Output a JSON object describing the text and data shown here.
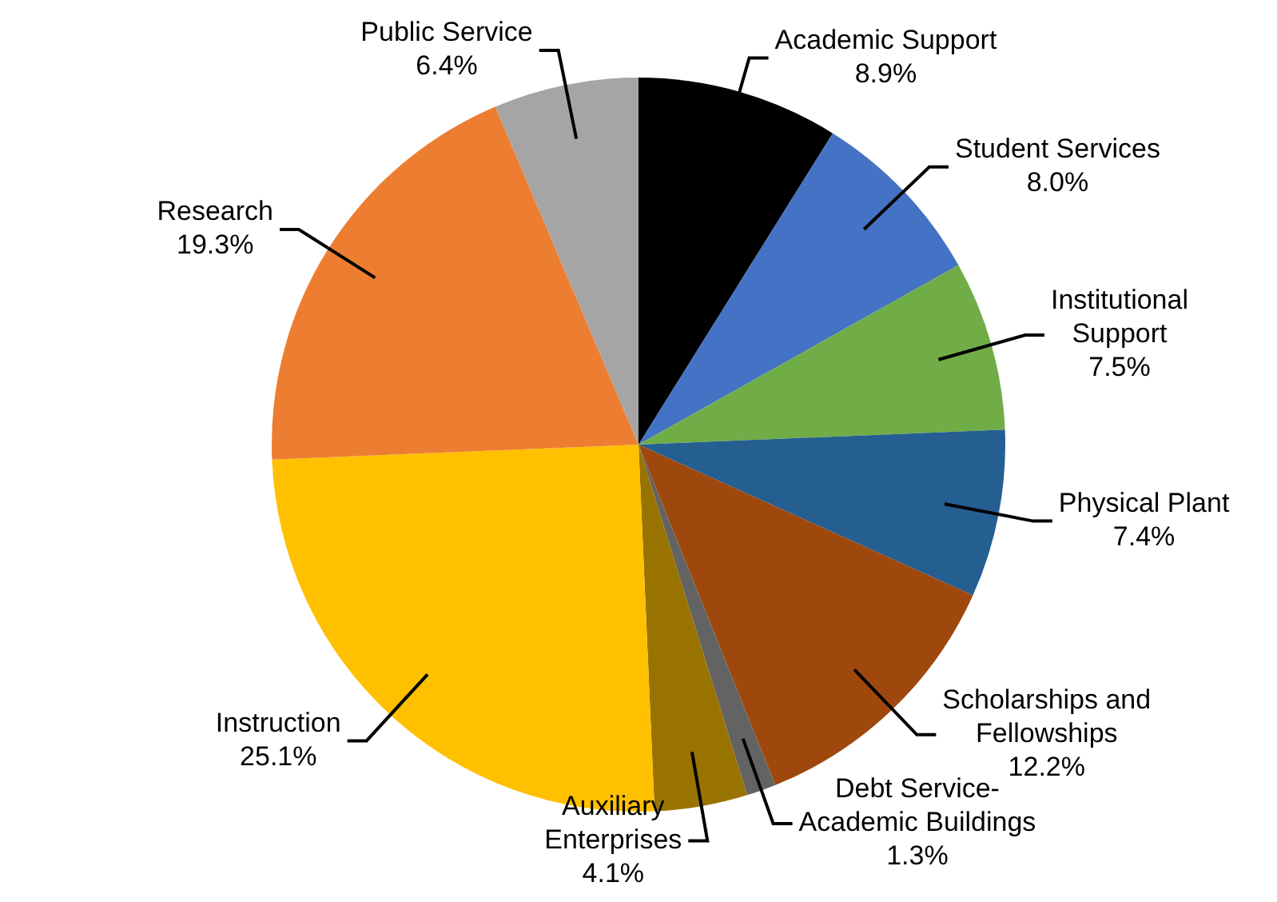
{
  "chart_data": {
    "type": "pie",
    "categories": [
      "Academic Support",
      "Student Services",
      "Institutional Support",
      "Physical Plant",
      "Scholarships and Fellowships",
      "Debt Service-Academic Buildings",
      "Auxiliary Enterprises",
      "Instruction",
      "Research",
      "Public Service"
    ],
    "values": [
      8.9,
      8.0,
      7.5,
      7.4,
      12.2,
      1.3,
      4.1,
      25.1,
      19.3,
      6.4
    ],
    "colors": [
      "#000000",
      "#4472c4",
      "#70ad47",
      "#255e91",
      "#9e480e",
      "#636363",
      "#997300",
      "#ffc000",
      "#ed7d31",
      "#a5a5a5"
    ],
    "value_labels": [
      "8.9%",
      "8.0%",
      "7.5%",
      "7.4%",
      "12.2%",
      "1.3%",
      "4.1%",
      "25.1%",
      "19.3%",
      "6.4%"
    ],
    "legend": false
  }
}
